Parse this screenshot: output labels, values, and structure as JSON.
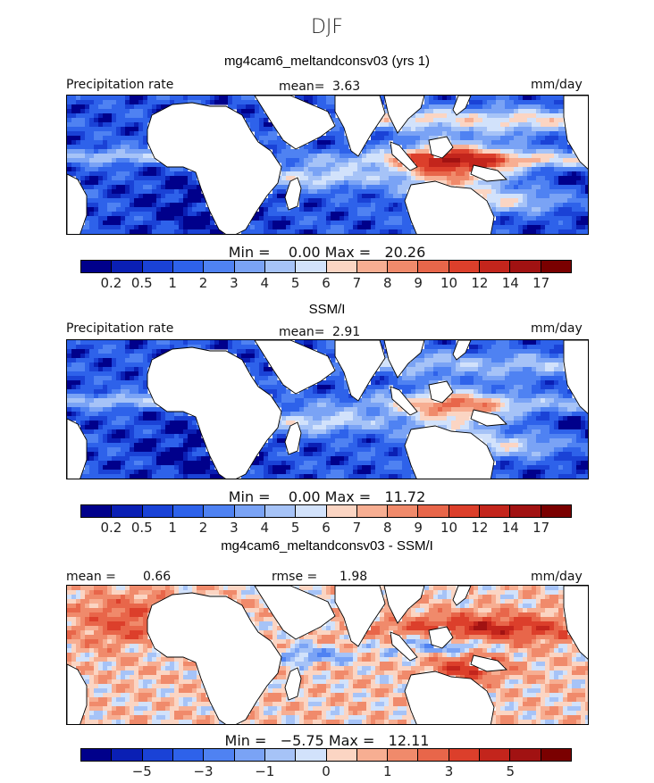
{
  "figure": {
    "season": "DJF"
  },
  "chart_data": [
    {
      "type": "heatmap",
      "title": "mg4cam6_meltandconsv03 (yrs 1)",
      "field_label": "Precipitation rate",
      "units": "mm/day",
      "stat_label": "mean=",
      "stat_value": "3.63",
      "min_label": "Min =",
      "min_value": "0.00",
      "max_label": "Max =",
      "max_value": "20.26",
      "colorbar_levels": [
        "0.2",
        "0.5",
        "1",
        "2",
        "3",
        "4",
        "5",
        "6",
        "7",
        "8",
        "9",
        "10",
        "12",
        "14",
        "17"
      ],
      "colorbar_ticks": [
        "0.2",
        "0.5",
        "1",
        "2",
        "3",
        "4",
        "5",
        "6",
        "7",
        "8",
        "9",
        "10",
        "12",
        "14",
        "17"
      ]
    },
    {
      "type": "heatmap",
      "title": "SSM/I",
      "field_label": "Precipitation rate",
      "units": "mm/day",
      "stat_label": "mean=",
      "stat_value": "2.91",
      "min_label": "Min =",
      "min_value": "0.00",
      "max_label": "Max =",
      "max_value": "11.72",
      "colorbar_levels": [
        "0.2",
        "0.5",
        "1",
        "2",
        "3",
        "4",
        "5",
        "6",
        "7",
        "8",
        "9",
        "10",
        "12",
        "14",
        "17"
      ],
      "colorbar_ticks": [
        "0.2",
        "0.5",
        "1",
        "2",
        "3",
        "4",
        "5",
        "6",
        "7",
        "8",
        "9",
        "10",
        "12",
        "14",
        "17"
      ]
    },
    {
      "type": "heatmap",
      "title": "mg4cam6_meltandconsv03 - SSM/I",
      "units": "mm/day",
      "stat_label": "mean =",
      "stat_value": "0.66",
      "stat2_label": "rmse =",
      "stat2_value": "1.98",
      "min_label": "Min =",
      "min_value": "−5.75",
      "max_label": "Max =",
      "max_value": "12.11",
      "colorbar_levels": [
        "-7",
        "-5",
        "-4",
        "-3",
        "-2",
        "-1",
        "-0.5",
        "0",
        "0.5",
        "1",
        "2",
        "3",
        "4",
        "5",
        "7"
      ],
      "colorbar_ticks": [
        "−5",
        "−3",
        "−1",
        "0",
        "1",
        "3",
        "5"
      ]
    }
  ],
  "colors": {
    "colorbar": [
      "#00008b",
      "#0a1fb4",
      "#1a42d6",
      "#2e62ea",
      "#4f82f2",
      "#7aa3f5",
      "#a6c3f7",
      "#d2e2fb",
      "#fbd5c3",
      "#f7ae92",
      "#f08a6b",
      "#e8664a",
      "#dc3f2b",
      "#c3251c",
      "#a11212",
      "#7a0000"
    ],
    "land": "#ffffff",
    "coast": "#000000"
  }
}
